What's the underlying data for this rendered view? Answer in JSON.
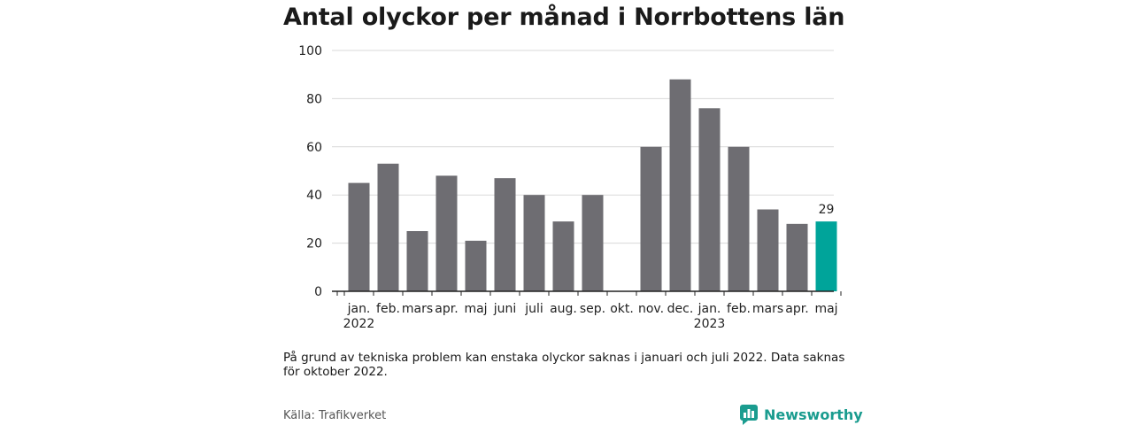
{
  "title": "Antal olyckor per månad i Norrbottens län",
  "note": "På grund av tekniska problem kan enstaka olyckor saknas i januari och juli 2022. Data saknas för oktober 2022.",
  "source": "Källa: Trafikverket",
  "brand": {
    "name": "Newsworthy",
    "icon": "bar-chart-badge-icon",
    "color": "#1a9c8f"
  },
  "chart_data": {
    "type": "bar",
    "categories": [
      "jan.",
      "feb.",
      "mars",
      "apr.",
      "maj",
      "juni",
      "juli",
      "aug.",
      "sep.",
      "okt.",
      "nov.",
      "dec.",
      "jan.",
      "feb.",
      "mars",
      "apr.",
      "maj"
    ],
    "year_labels": [
      {
        "index": 0,
        "label": "2022"
      },
      {
        "index": 12,
        "label": "2023"
      }
    ],
    "values": [
      45,
      53,
      25,
      48,
      21,
      47,
      40,
      29,
      40,
      null,
      60,
      88,
      76,
      60,
      34,
      28,
      29
    ],
    "highlight_index": 16,
    "highlight_label": "29",
    "ylim": [
      0,
      100
    ],
    "yticks": [
      0,
      20,
      40,
      60,
      80,
      100
    ],
    "grid": true,
    "colors": {
      "bar": "#6e6d72",
      "highlight": "#00a49a",
      "grid": "#d9d9d9",
      "axis": "#222222"
    }
  }
}
